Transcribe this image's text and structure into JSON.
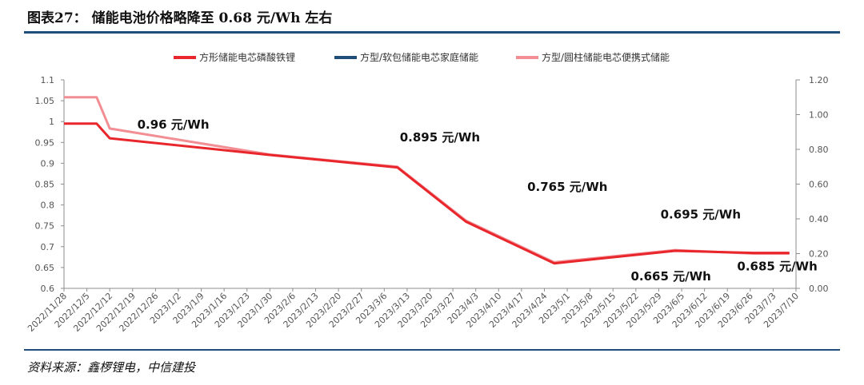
{
  "header": {
    "title": "图表27：  储能电池价格略降至 0.68 元/Wh 左右"
  },
  "footer": {
    "source": "资料来源：鑫椤锂电，中信建投"
  },
  "colors": {
    "rule": "#1f4e79",
    "series1": "#e8262b",
    "series2": "#1f4e79",
    "series3": "#f28e94"
  },
  "chart_data": {
    "type": "line",
    "title": "",
    "xlabel": "",
    "ylabel": "",
    "ylim": [
      0.6,
      1.1
    ],
    "ylim_right": [
      0.0,
      1.2
    ],
    "grid": false,
    "legend_position": "top",
    "y_ticks": [
      "1.1",
      "1.05",
      "1",
      "0.95",
      "0.9",
      "0.85",
      "0.8",
      "0.75",
      "0.7",
      "0.65",
      "0.6"
    ],
    "y_right_ticks": [
      "1.20",
      "1.00",
      "0.80",
      "0.60",
      "0.40",
      "0.20",
      "0.00"
    ],
    "x_ticks": [
      "2022/11/28",
      "2022/12/5",
      "2022/12/12",
      "2022/12/19",
      "2022/12/26",
      "2023/1/2",
      "2023/1/9",
      "2023/1/16",
      "2023/1/23",
      "2023/1/30",
      "2023/2/6",
      "2023/2/13",
      "2023/2/20",
      "2023/2/27",
      "2023/3/6",
      "2023/3/13",
      "2023/3/20",
      "2023/3/27",
      "2023/4/3",
      "2023/4/10",
      "2023/4/17",
      "2023/4/24",
      "2023/5/1",
      "2023/5/8",
      "2023/5/15",
      "2023/5/22",
      "2023/5/29",
      "2023/6/5",
      "2023/6/12",
      "2023/6/19",
      "2023/6/26",
      "2023/7/3",
      "2023/7/10"
    ],
    "series": [
      {
        "name": "方形储能电芯磷酸铁锂",
        "axis": "left",
        "color": "#e8262b",
        "x": [
          "2022/11/28",
          "2022/12/8",
          "2022/12/12",
          "2023/1/30",
          "2023/3/10",
          "2023/3/31",
          "2023/4/27",
          "2023/6/3",
          "2023/6/27",
          "2023/7/8"
        ],
        "y": [
          0.995,
          0.995,
          0.96,
          0.92,
          0.89,
          0.76,
          0.66,
          0.69,
          0.685,
          0.685
        ]
      },
      {
        "name": "方型/软包储能电芯家庭储能",
        "axis": "right",
        "color": "#1f4e79",
        "x": [],
        "y": []
      },
      {
        "name": "方型/圆柱储能电芯便携式储能",
        "axis": "right",
        "color": "#f28e94",
        "x": [
          "2022/11/28",
          "2022/12/8",
          "2022/12/12",
          "2023/1/30",
          "2023/3/10",
          "2023/3/31",
          "2023/4/27",
          "2023/6/3",
          "2023/6/27",
          "2023/7/8"
        ],
        "y": [
          1.1,
          1.1,
          0.92,
          0.77,
          0.7,
          0.39,
          0.15,
          0.22,
          0.2,
          0.2
        ]
      }
    ],
    "annotations": [
      {
        "text": "0.96 元/Wh",
        "x": "2023/1/9",
        "y": 0.96
      },
      {
        "text": "0.895 元/Wh",
        "x": "2023/4/3",
        "y": 0.895
      },
      {
        "text": "0.765 元/Wh",
        "x": "2023/5/1",
        "y": 0.765
      },
      {
        "text": "0.695 元/Wh",
        "x": "2023/6/12",
        "y": 0.695
      },
      {
        "text": "0.665 元/Wh",
        "x": "2023/5/29",
        "y": 0.665
      },
      {
        "text": "0.685 元/Wh",
        "x": "2023/7/3",
        "y": 0.685
      }
    ]
  }
}
